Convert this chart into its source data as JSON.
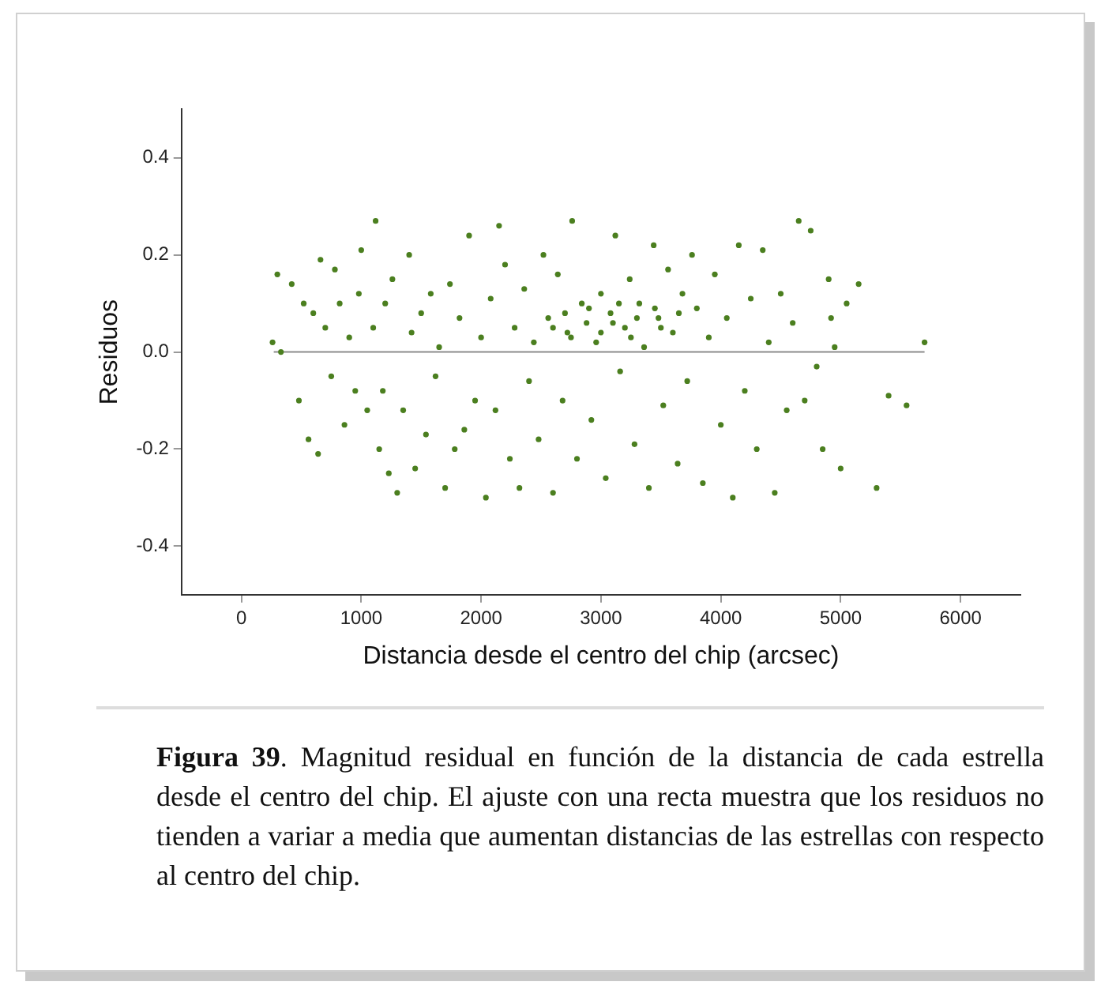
{
  "chart_data": {
    "type": "scatter",
    "xlabel": "Distancia desde el centro del chip (arcsec)",
    "ylabel": "Residuos",
    "xlim": [
      -500,
      6500
    ],
    "xticks": [
      0,
      1000,
      2000,
      3000,
      4000,
      5000,
      6000
    ],
    "ylim": [
      -0.5,
      0.5
    ],
    "yticks": [
      -0.4,
      -0.2,
      {
        "value": 0,
        "label": "0.0"
      },
      0.2,
      0.4
    ],
    "grid": false,
    "legend": false,
    "series": [
      {
        "type": "scatter",
        "marker": "circle",
        "color": "#4b7f1f",
        "x": [
          260,
          300,
          330,
          420,
          480,
          520,
          560,
          600,
          640,
          660,
          700,
          750,
          780,
          820,
          860,
          900,
          950,
          980,
          1000,
          1050,
          1100,
          1120,
          1150,
          1180,
          1200,
          1230,
          1260,
          1300,
          1350,
          1400,
          1420,
          1450,
          1500,
          1540,
          1580,
          1620,
          1650,
          1700,
          1740,
          1780,
          1820,
          1860,
          1900,
          1950,
          2000,
          2040,
          2080,
          2120,
          2150,
          2200,
          2240,
          2280,
          2320,
          2360,
          2400,
          2440,
          2480,
          2520,
          2560,
          2600,
          2640,
          2680,
          2720,
          2760,
          2800,
          2840,
          2880,
          2920,
          2960,
          3000,
          3040,
          3080,
          3120,
          3160,
          3200,
          3240,
          3280,
          3320,
          3360,
          3400,
          3440,
          3480,
          3520,
          3560,
          3600,
          3640,
          3680,
          3720,
          3760,
          3800,
          3850,
          3900,
          3950,
          4000,
          4050,
          4100,
          4150,
          4200,
          4250,
          4300,
          4350,
          4400,
          4450,
          4500,
          4550,
          4600,
          4650,
          4700,
          4750,
          4800,
          4850,
          4900,
          4950,
          5000,
          5050,
          5400,
          5550,
          5700,
          5300,
          5150,
          4920,
          2600,
          2700,
          2750,
          2900,
          3000,
          3100,
          3150,
          3250,
          3300,
          3450,
          3500,
          3650
        ],
        "values": [
          0.02,
          0.16,
          0.0,
          0.14,
          -0.1,
          0.1,
          -0.18,
          0.08,
          -0.21,
          0.19,
          0.05,
          -0.05,
          0.17,
          0.1,
          -0.15,
          0.03,
          -0.08,
          0.12,
          0.21,
          -0.12,
          0.05,
          0.27,
          -0.2,
          -0.08,
          0.1,
          -0.25,
          0.15,
          -0.29,
          -0.12,
          0.2,
          0.04,
          -0.24,
          0.08,
          -0.17,
          0.12,
          -0.05,
          0.01,
          -0.28,
          0.14,
          -0.2,
          0.07,
          -0.16,
          0.24,
          -0.1,
          0.03,
          -0.3,
          0.11,
          -0.12,
          0.26,
          0.18,
          -0.22,
          0.05,
          -0.28,
          0.13,
          -0.06,
          0.02,
          -0.18,
          0.2,
          0.07,
          -0.29,
          0.16,
          -0.1,
          0.04,
          0.27,
          -0.22,
          0.1,
          0.06,
          -0.14,
          0.02,
          0.12,
          -0.26,
          0.08,
          0.24,
          -0.04,
          0.05,
          0.15,
          -0.19,
          0.1,
          0.01,
          -0.28,
          0.22,
          0.07,
          -0.11,
          0.17,
          0.04,
          -0.23,
          0.12,
          -0.06,
          0.2,
          0.09,
          -0.27,
          0.03,
          0.16,
          -0.15,
          0.07,
          -0.3,
          0.22,
          -0.08,
          0.11,
          -0.2,
          0.21,
          0.02,
          -0.29,
          0.12,
          -0.12,
          0.06,
          0.27,
          -0.1,
          0.25,
          -0.03,
          -0.2,
          0.15,
          0.01,
          -0.24,
          0.1,
          -0.09,
          -0.11,
          0.02,
          -0.28,
          0.14,
          0.07,
          0.05,
          0.08,
          0.03,
          0.09,
          0.04,
          0.06,
          0.1,
          0.03,
          0.07,
          0.09,
          0.05,
          0.08
        ]
      },
      {
        "type": "line",
        "marker": "none",
        "color": "#8c8c8c",
        "x": [
          270,
          5700
        ],
        "values": [
          0,
          0
        ]
      }
    ],
    "annotations": [
      "Figura 39",
      ". Magnitud residual en función de la distancia de cada estrella desde el centro del chip. El ajuste con una recta muestra que los residuos no tienden a variar a media que aumentan distancias de las estrellas con respecto al centro del chip."
    ]
  }
}
